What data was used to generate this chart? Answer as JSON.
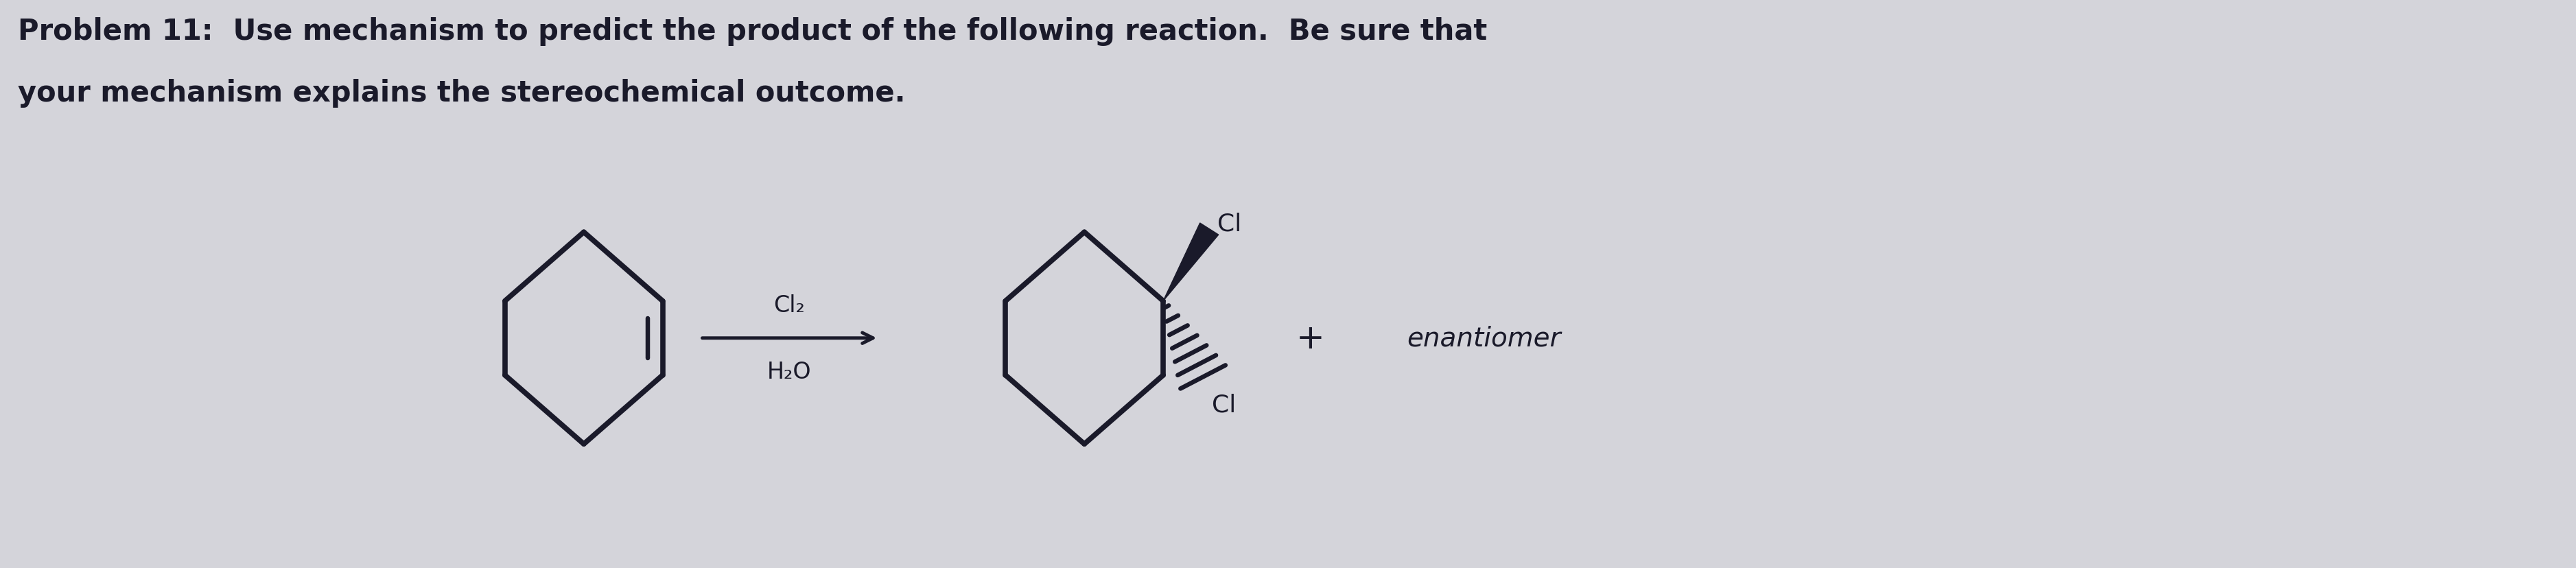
{
  "background_color": "#d4d4da",
  "title_line1": "Problem 11:  Use mechanism to predict the product of the following reaction.  Be sure that",
  "title_line2": "your mechanism explains the stereochemical outcome.",
  "title_fontsize": 30,
  "reagent_above": "Cl₂",
  "reagent_below": "H₂O",
  "plus_sign": "+",
  "enantiomer_text": "enantiomer",
  "text_color": "#1a1a2a",
  "arrow_color": "#1a1a2a",
  "structure_color": "#1a1a2a",
  "lw": 5.5
}
